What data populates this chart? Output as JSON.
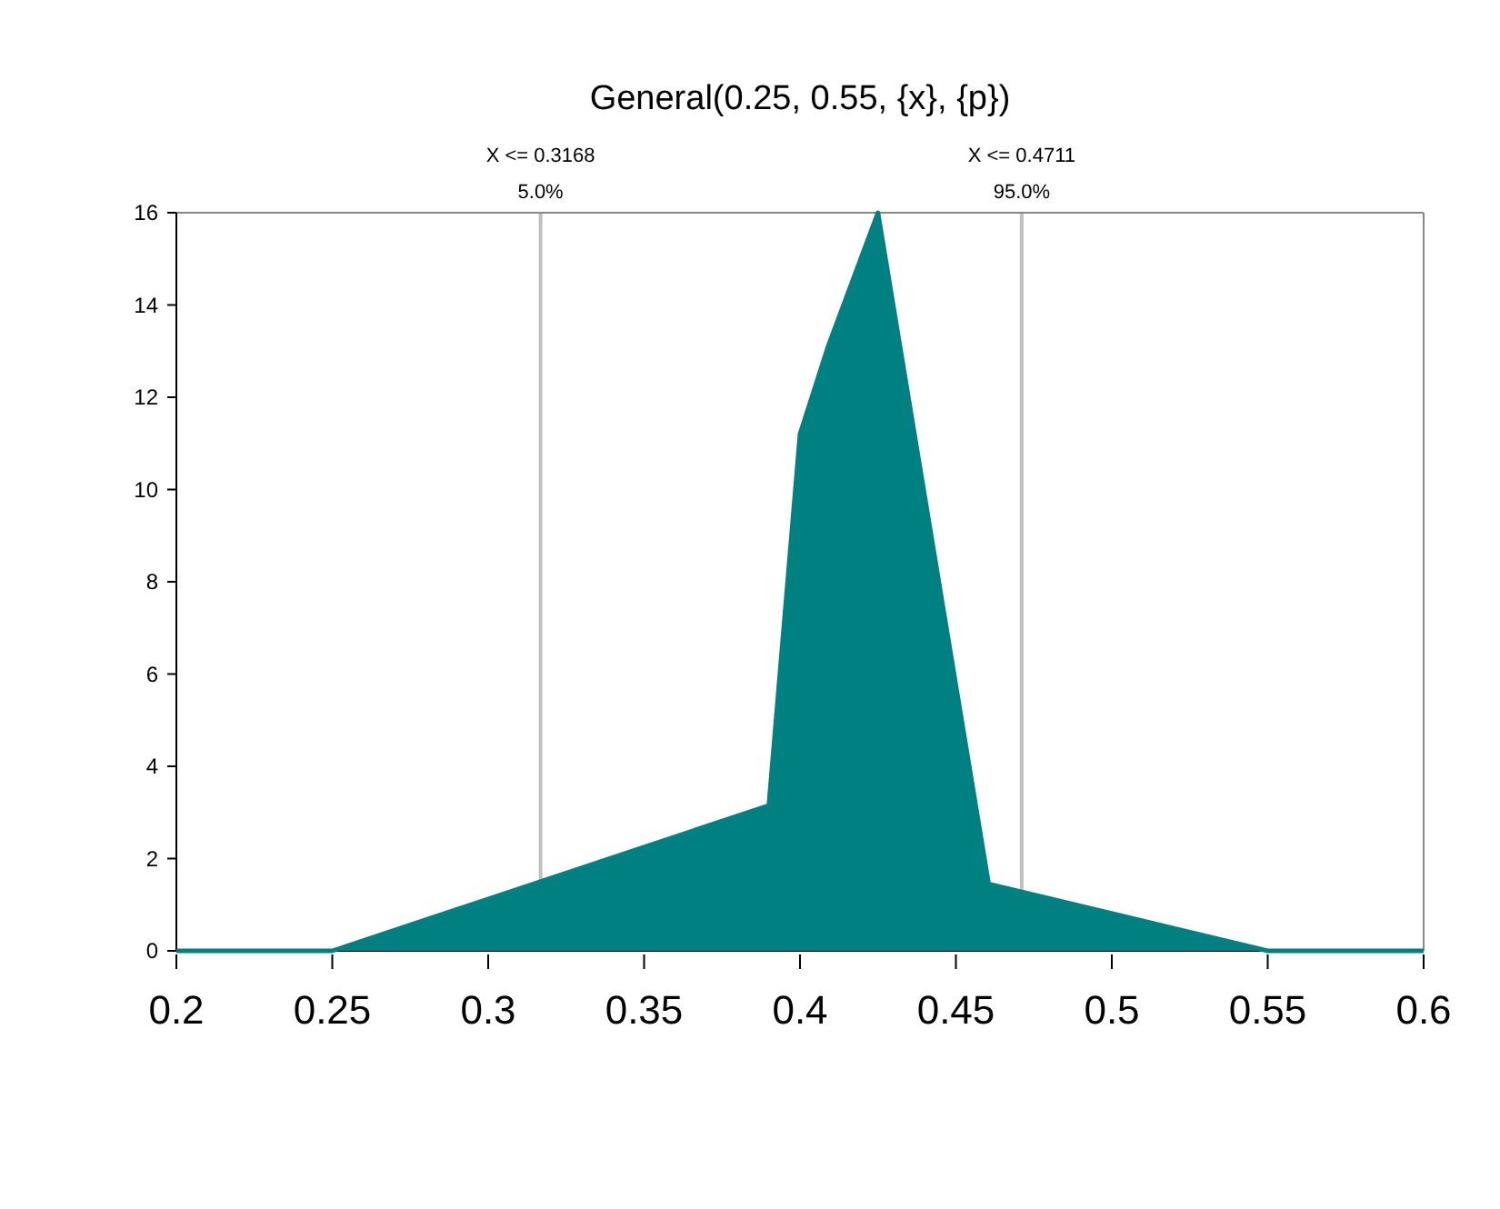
{
  "chart_data": {
    "type": "area",
    "title": "General(0.25, 0.55, {x}, {p})",
    "x": [
      0.2,
      0.25,
      0.39,
      0.4,
      0.409,
      0.425,
      0.4605,
      0.55,
      0.6
    ],
    "series": [
      {
        "color": "#008080",
        "values": [
          0,
          0,
          3.15,
          11.2,
          13.1,
          16,
          1.45,
          0,
          0
        ]
      }
    ],
    "xlim": [
      0.2,
      0.6
    ],
    "xticks": [
      0.2,
      0.25,
      0.3,
      0.35,
      0.4,
      0.45,
      0.5,
      0.55,
      0.6
    ],
    "ylim": [
      0,
      16
    ],
    "yticks": [
      0,
      2,
      4,
      6,
      8,
      10,
      12,
      14,
      16
    ],
    "grid": false,
    "ref_lines": [
      {
        "axis": "x",
        "value": 0.3168,
        "label": "X <= 0.3168\n5.0%",
        "color": "#c0c0c0"
      },
      {
        "axis": "x",
        "value": 0.4711,
        "label": "X <= 0.4711\n95.0%",
        "color": "#c0c0c0"
      }
    ]
  }
}
